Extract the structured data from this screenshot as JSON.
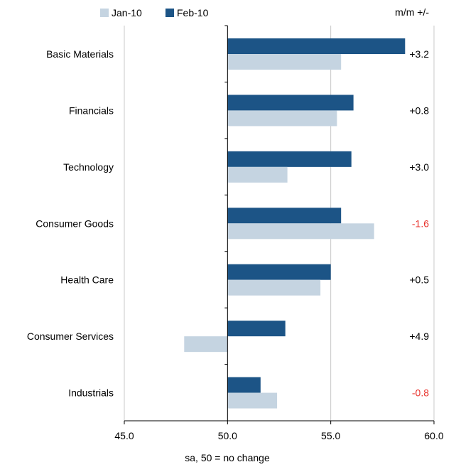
{
  "chart_data": {
    "type": "bar",
    "orientation": "horizontal",
    "categories": [
      "Basic Materials",
      "Financials",
      "Technology",
      "Consumer Goods",
      "Health Care",
      "Consumer Services",
      "Industrials"
    ],
    "series": [
      {
        "name": "Jan-10",
        "color": "#c5d4e1",
        "values": [
          55.5,
          55.3,
          52.9,
          57.1,
          54.5,
          47.9,
          52.4
        ]
      },
      {
        "name": "Feb-10",
        "color": "#1c5486",
        "values": [
          58.6,
          56.1,
          56.0,
          55.5,
          55.0,
          52.8,
          51.6
        ]
      }
    ],
    "change_header": "m/m +/-",
    "changes": [
      {
        "label": "+3.2",
        "color": "#000000"
      },
      {
        "label": "+0.8",
        "color": "#000000"
      },
      {
        "label": "+3.0",
        "color": "#000000"
      },
      {
        "label": "-1.6",
        "color": "#e8302a"
      },
      {
        "label": "+0.5",
        "color": "#000000"
      },
      {
        "label": "+4.9",
        "color": "#000000"
      },
      {
        "label": "-0.8",
        "color": "#e8302a"
      }
    ],
    "x_ticks": [
      "45.0",
      "50.0",
      "55.0",
      "60.0"
    ],
    "xlim": [
      45,
      60
    ],
    "baseline": 50,
    "xlabel": "sa, 50 = no change",
    "grid": "vertical",
    "legend_position": "top-left"
  }
}
